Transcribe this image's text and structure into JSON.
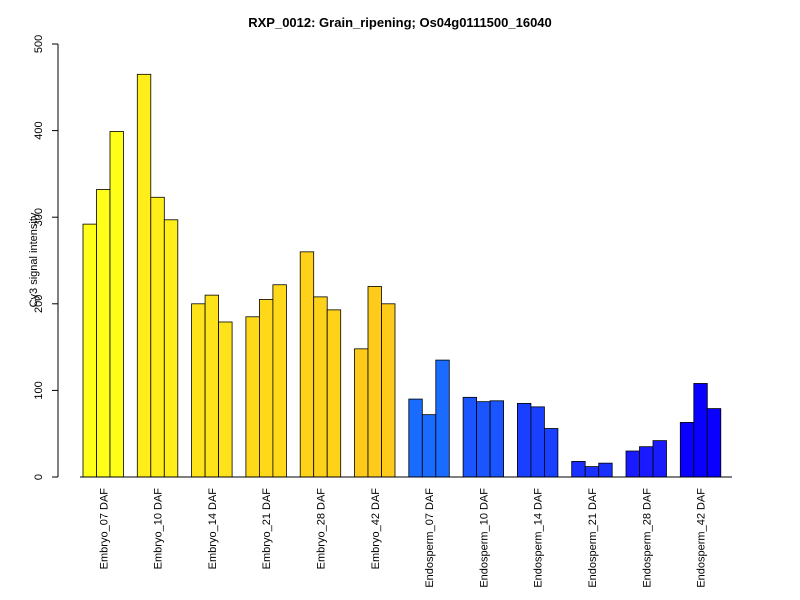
{
  "chart_data": {
    "type": "bar",
    "title": "RXP_0012: Grain_ripening; Os04g0111500_16040",
    "xlabel": "",
    "ylabel": "Cy3 signal intensity",
    "ylim": [
      0,
      500
    ],
    "yticks": [
      0,
      100,
      200,
      300,
      400,
      500
    ],
    "grid": false,
    "legend": "none",
    "categories": [
      "Embryo_07 DAF",
      "Embryo_10 DAF",
      "Embryo_14 DAF",
      "Embryo_21 DAF",
      "Embryo_28 DAF",
      "Embryo_42 DAF",
      "Endosperm_07 DAF",
      "Endosperm_10 DAF",
      "Endosperm_14 DAF",
      "Endosperm_21 DAF",
      "Endosperm_28 DAF",
      "Endosperm_42 DAF"
    ],
    "colors": [
      "#ffff1a",
      "#ffee1a",
      "#ffe31a",
      "#ffd81a",
      "#ffd21a",
      "#ffcb1a",
      "#1a6bff",
      "#1a55ff",
      "#1a40ff",
      "#1a30ff",
      "#1a1aff",
      "#0a00ff"
    ],
    "replicates": [
      [
        292,
        332,
        399
      ],
      [
        465,
        323,
        297
      ],
      [
        200,
        210,
        179
      ],
      [
        185,
        205,
        222
      ],
      [
        260,
        208,
        193
      ],
      [
        148,
        220,
        200
      ],
      [
        90,
        72,
        135
      ],
      [
        92,
        87,
        88
      ],
      [
        85,
        81,
        56
      ],
      [
        18,
        12,
        16
      ],
      [
        30,
        35,
        42
      ],
      [
        63,
        108,
        79
      ]
    ]
  }
}
